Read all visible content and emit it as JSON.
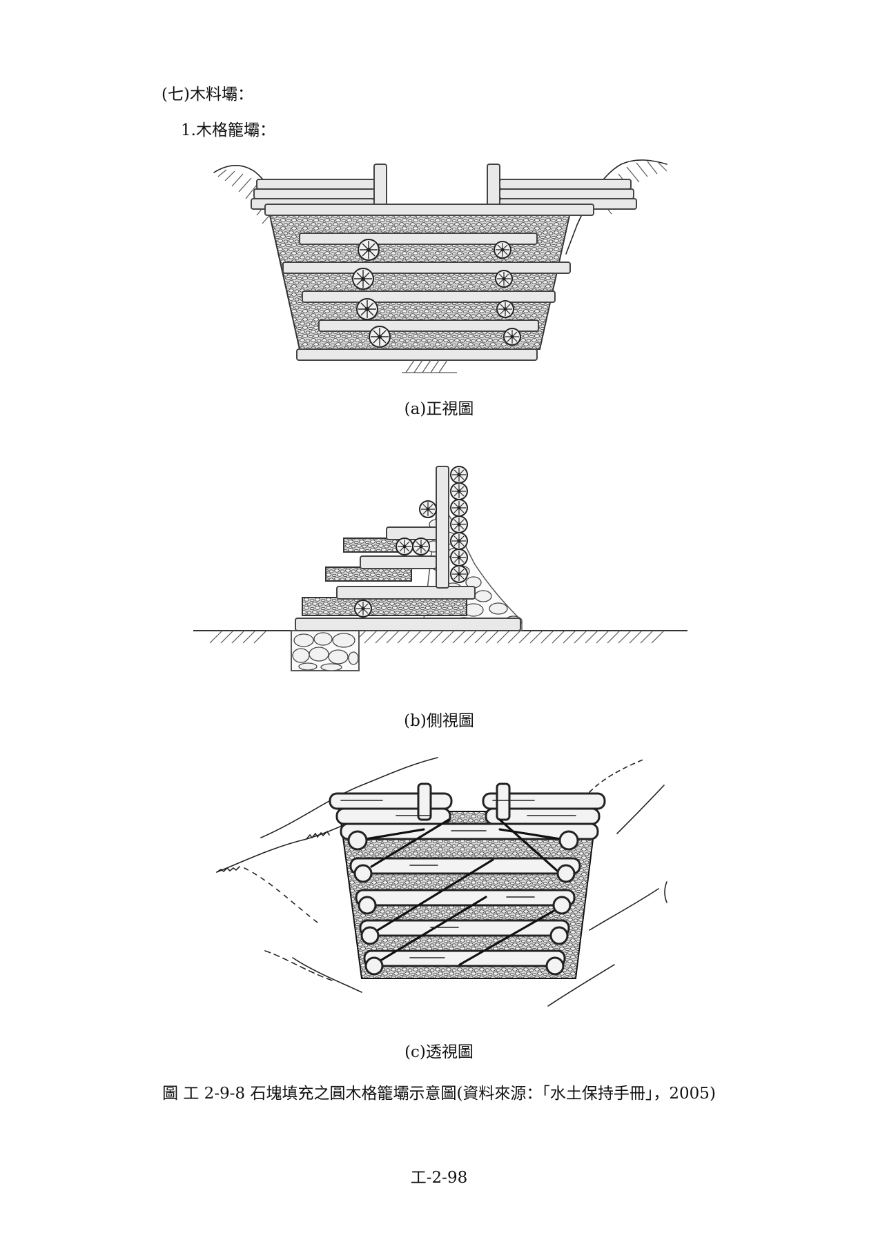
{
  "section": {
    "heading": "(七)木料壩：",
    "subheading": "1.木格籠壩："
  },
  "figures": {
    "front": {
      "caption": "(a)正視圖"
    },
    "side": {
      "caption": "(b)側視圖"
    },
    "perspective": {
      "caption": "(c)透視圖"
    }
  },
  "figure_caption": "圖 工 2-9-8 石塊填充之圓木格籠壩示意圖(資料來源：「水土保持手冊」，2005)",
  "page_number": "工-2-98"
}
